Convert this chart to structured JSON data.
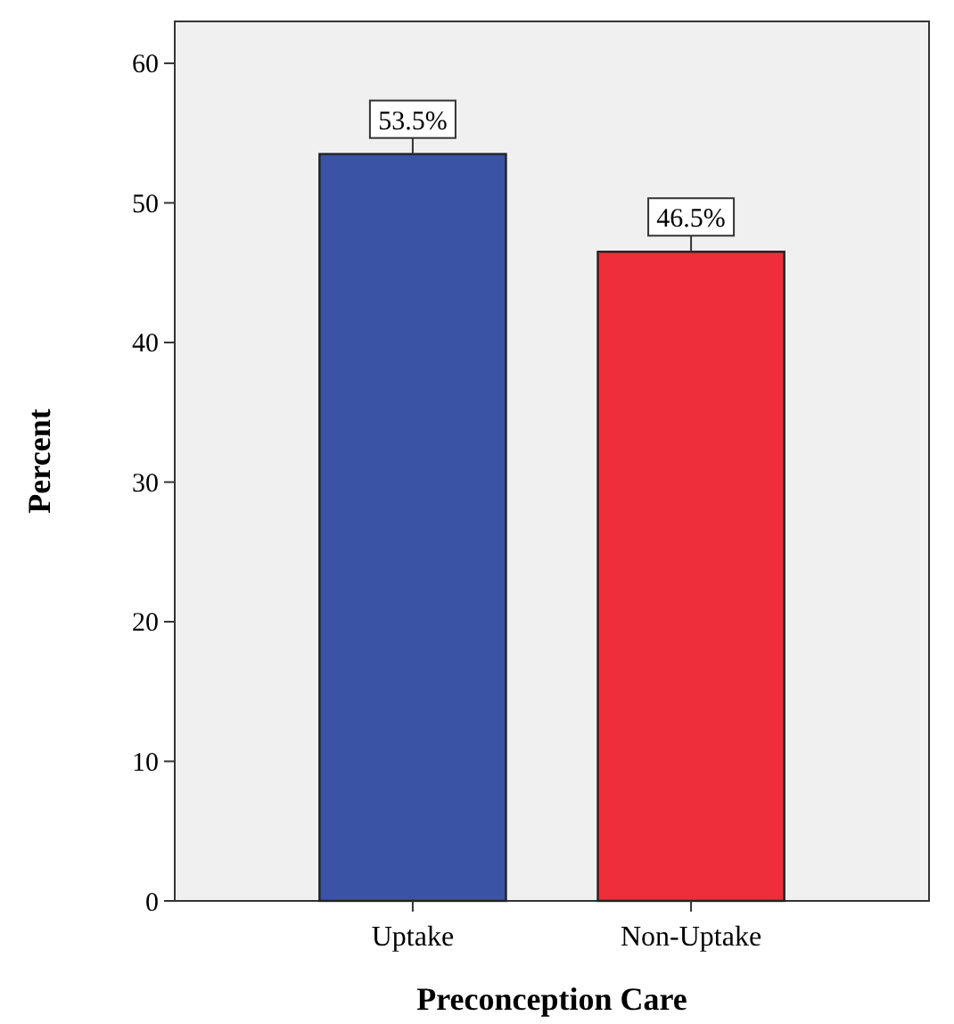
{
  "chart_data": {
    "type": "bar",
    "xlabel": "Preconception Care",
    "ylabel": "Percent",
    "categories": [
      "Uptake",
      "Non-Uptake"
    ],
    "values": [
      53.5,
      46.5
    ],
    "colors": [
      "#3a53a4",
      "#ee2e3a"
    ],
    "value_labels": [
      "53.5%",
      "46.5%"
    ],
    "ylim": [
      0,
      63
    ],
    "yticks": [
      0,
      10,
      20,
      30,
      40,
      50,
      60
    ]
  }
}
